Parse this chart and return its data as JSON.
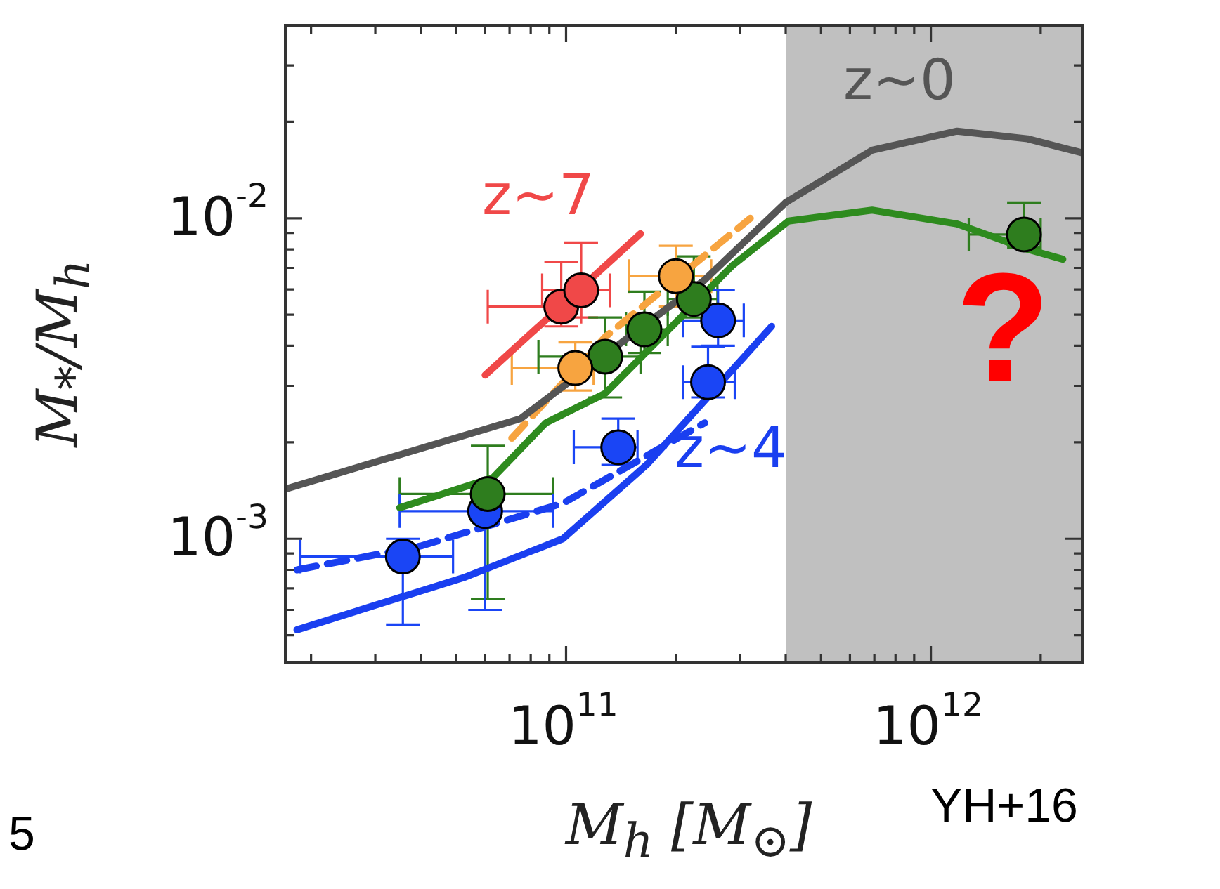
{
  "chart_data": {
    "type": "line",
    "xlabel": "M$_{h}$  [M$_{⊙}$]",
    "ylabel": "M$_{*}$/M$_{h}$",
    "log": "xy",
    "xlim": [
      17000000000.0,
      2600000000000.0
    ],
    "ylim": [
      0.00041,
      0.04
    ],
    "xticks": [
      {
        "value": 20000000000.0,
        "label": null
      },
      {
        "value": 30000000000.0,
        "label": null
      },
      {
        "value": 40000000000.0,
        "label": null
      },
      {
        "value": 50000000000.0,
        "label": null
      },
      {
        "value": 60000000000.0,
        "label": null
      },
      {
        "value": 70000000000.0,
        "label": null
      },
      {
        "value": 80000000000.0,
        "label": null
      },
      {
        "value": 90000000000.0,
        "label": null
      },
      {
        "value": 100000000000.0,
        "label": "10$^{11}$"
      },
      {
        "value": 200000000000.0,
        "label": null
      },
      {
        "value": 300000000000.0,
        "label": null
      },
      {
        "value": 400000000000.0,
        "label": null
      },
      {
        "value": 500000000000.0,
        "label": null
      },
      {
        "value": 600000000000.0,
        "label": null
      },
      {
        "value": 700000000000.0,
        "label": null
      },
      {
        "value": 800000000000.0,
        "label": null
      },
      {
        "value": 900000000000.0,
        "label": null
      },
      {
        "value": 1000000000000.0,
        "label": "10$^{12}$"
      },
      {
        "value": 2000000000000.0,
        "label": null
      }
    ],
    "yticks": [
      {
        "value": 0.0005,
        "label": null
      },
      {
        "value": 0.0006,
        "label": null
      },
      {
        "value": 0.0007,
        "label": null
      },
      {
        "value": 0.0008,
        "label": null
      },
      {
        "value": 0.0009,
        "label": null
      },
      {
        "value": 0.001,
        "label": "10$^{-3}$"
      },
      {
        "value": 0.002,
        "label": null
      },
      {
        "value": 0.003,
        "label": null
      },
      {
        "value": 0.004,
        "label": null
      },
      {
        "value": 0.005,
        "label": null
      },
      {
        "value": 0.006,
        "label": null
      },
      {
        "value": 0.007,
        "label": null
      },
      {
        "value": 0.008,
        "label": null
      },
      {
        "value": 0.009,
        "label": null
      },
      {
        "value": 0.01,
        "label": "10$^{-2}$"
      },
      {
        "value": 0.02,
        "label": null
      },
      {
        "value": 0.03,
        "label": null
      }
    ],
    "series": [
      {
        "name": "z~0",
        "color": "#555555",
        "marker": "none",
        "line_style": "solid",
        "x": [
          17000000000.0,
          75000000000.0,
          239000000000.0,
          400000000000.0,
          690000000000.0,
          1180000000000.0,
          1840000000000.0,
          2600000000000.0
        ],
        "values": [
          0.00143,
          0.00237,
          0.0064,
          0.0112,
          0.0163,
          0.0187,
          0.0177,
          0.016
        ]
      },
      {
        "color": "#2e8b1e",
        "marker": "none",
        "line_style": "solid",
        "x": [
          35000000000.0,
          63000000000.0,
          88000000000.0,
          128000000000.0,
          285000000000.0,
          407000000000.0,
          690000000000.0,
          1180000000000.0,
          1840000000000.0,
          2300000000000.0
        ],
        "values": [
          0.00125,
          0.00155,
          0.0023,
          0.00284,
          0.0071,
          0.0098,
          0.0106,
          0.0096,
          0.008,
          0.00745
        ]
      },
      {
        "color": "#f7a440",
        "marker": "none",
        "line_style": "dashed",
        "x": [
          71000000000.0,
          128000000000.0,
          320000000000.0
        ],
        "values": [
          0.00206,
          0.00426,
          0.01
        ]
      },
      {
        "name": "z~7",
        "color": "#f04848",
        "marker": "none",
        "line_style": "solid",
        "x": [
          60000000000.0,
          160000000000.0
        ],
        "values": [
          0.00324,
          0.00895
        ]
      },
      {
        "name": "z~4",
        "color": "#1a3ff0",
        "marker": "none",
        "line_style": "solid",
        "x": [
          18300000000.0,
          53000000000.0,
          98000000000.0,
          167000000000.0,
          366000000000.0
        ],
        "values": [
          0.00052,
          0.00076,
          0.001,
          0.00171,
          0.0046
        ]
      },
      {
        "color": "#1a3ff0",
        "marker": "none",
        "line_style": "dashed",
        "x": [
          18300000000.0,
          40000000000.0,
          98000000000.0,
          183000000000.0,
          240000000000.0
        ],
        "values": [
          0.0008,
          0.00095,
          0.00129,
          0.00193,
          0.0023
        ]
      },
      {
        "type": "scatter",
        "color": "#f04848",
        "marker": "circle",
        "x": [
          97000000000.0,
          110000000000.0
        ],
        "values": [
          0.0053,
          0.00596
        ],
        "xerrors": [
          [
            61000000000.0,
            110000000000.0
          ],
          [
            86000000000.0,
            132000000000.0
          ]
        ],
        "errors": [
          [
            0.0046,
            0.0073
          ],
          [
            0.0049,
            0.0084
          ]
        ]
      },
      {
        "type": "scatter",
        "color": "#f7a440",
        "marker": "circle",
        "x": [
          106000000000.0,
          200000000000.0
        ],
        "values": [
          0.00341,
          0.0066
        ],
        "xerrors": [
          [
            71000000000.0,
            119000000000.0
          ],
          [
            149000000000.0,
            250000000000.0
          ]
        ],
        "errors": [
          [
            0.0029,
            0.0041
          ],
          [
            0.0053,
            0.0082
          ]
        ]
      },
      {
        "type": "scatter",
        "color": "#2e7d1e",
        "marker": "circle",
        "x": [
          61000000000.0,
          128000000000.0,
          164000000000.0,
          224000000000.0,
          1800000000000.0
        ],
        "values": [
          0.00138,
          0.0037,
          0.0045,
          0.0056,
          0.0089
        ],
        "xerrors": [
          [
            35000000000.0,
            92000000000.0
          ],
          [
            84000000000.0,
            160000000000.0
          ],
          [
            146000000000.0,
            190000000000.0
          ],
          [
            190000000000.0,
            260000000000.0
          ],
          [
            1270000000000.0,
            2000000000000.0
          ]
        ],
        "errors": [
          [
            0.00065,
            0.00195
          ],
          [
            0.00276,
            0.0049
          ],
          [
            0.0038,
            0.0059
          ],
          [
            0.0049,
            0.0076
          ],
          [
            0.0081,
            0.0112
          ]
        ]
      },
      {
        "type": "scatter",
        "color": "#1a45f5",
        "marker": "circle",
        "x": [
          35700000000.0,
          60000000000.0,
          139000000000.0,
          245000000000.0,
          261000000000.0
        ],
        "values": [
          0.00088,
          0.00122,
          0.00193,
          0.00308,
          0.0048
        ],
        "xerrors": [
          [
            18700000000.0,
            49000000000.0
          ],
          [
            35000000000.0,
            92000000000.0
          ],
          [
            105000000000.0,
            157000000000.0
          ],
          [
            209000000000.0,
            290000000000.0
          ],
          [
            209000000000.0,
            307000000000.0
          ]
        ],
        "errors": [
          [
            0.00054,
            0.001
          ],
          [
            0.0006,
            0.00122
          ],
          [
            0.0017,
            0.00237
          ],
          [
            0.00276,
            0.00397
          ],
          [
            0.004,
            0.00596
          ]
        ]
      }
    ],
    "bands": [
      {
        "axis": "x",
        "from": 400000000000.0,
        "to": 2600000000000.0,
        "color": "#c0c0c0"
      }
    ],
    "annotations": [
      "?",
      "5",
      "YH+16"
    ]
  }
}
